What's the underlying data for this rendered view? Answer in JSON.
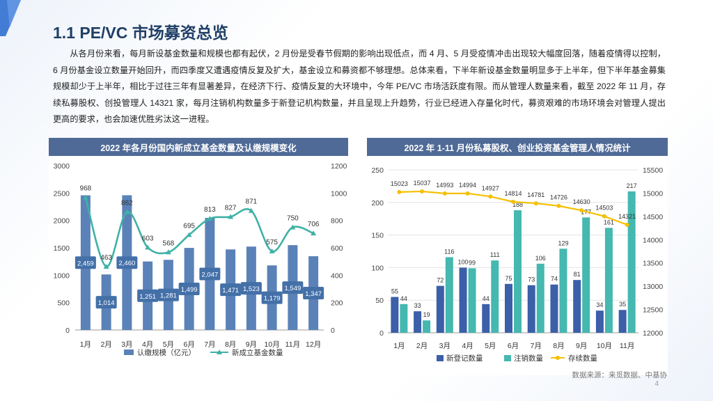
{
  "page": {
    "title": "1.1 PE/VC 市场募资总览",
    "paragraph": "从各月份来看，每月新设基金数量和规模也都有起伏，2 月份是受春节假期的影响出现低点，而 4 月、5 月受疫情冲击出现较大幅度回落，随着疫情得以控制，6 月份基金设立数量开始回升，而四季度又遭遇疫情反复及扩大，基金设立和募资都不够理想。总体来看，下半年新设基金数量明显多于上半年，但下半年基金募集规模却少于上半年，相比于过往三年有显著差异，在经济下行、疫情反复的大环境中，今年 PE/VC 市场活跃度有限。而从管理人数量来看，截至 2022 年 11 月，存续私募股权、创投管理人 14321 家，每月注销机构数量多于新登记机构数量，并且呈现上升趋势，行业已经进入存量化时代，募资艰难的市场环境会对管理人提出更高的要求，也会加速优胜劣汰这一进程。",
    "source": "数据来源：来觅数据、中基协",
    "page_number": "4",
    "accent_color": "#4f6a96"
  },
  "chart_data": [
    {
      "type": "bar",
      "title": "2022 年各月份国内新成立基金数量及认缴规模变化",
      "categories": [
        "1月",
        "2月",
        "3月",
        "4月",
        "5月",
        "6月",
        "7月",
        "8月",
        "9月",
        "10月",
        "11月",
        "12月"
      ],
      "series": [
        {
          "name": "认缴规模（亿元）",
          "type": "bar",
          "axis": "left",
          "color": "#5b82b8",
          "values": [
            2459,
            1014,
            2460,
            1251,
            1281,
            1499,
            2047,
            1471,
            1523,
            1179,
            1549,
            1347
          ],
          "labels": [
            "2,459",
            "1,014",
            "2,460",
            "1,251",
            "1,281",
            "1,499",
            "2,047",
            "1,471",
            "1,523",
            "1,179",
            "1,549",
            "1,347"
          ]
        },
        {
          "name": "新成立基金数量",
          "type": "line",
          "axis": "right",
          "color": "#3fb1a6",
          "values": [
            968,
            463,
            862,
            603,
            568,
            695,
            813,
            827,
            871,
            575,
            750,
            706
          ]
        }
      ],
      "ylim_left": [
        0,
        3000
      ],
      "yticks_left": [
        0,
        500,
        1000,
        1500,
        2000,
        2500,
        3000
      ],
      "ylim_right": [
        0,
        1200
      ],
      "yticks_right": [
        0,
        200,
        400,
        600,
        800,
        1000,
        1200
      ],
      "legend": "bottom"
    },
    {
      "type": "bar",
      "title": "2022 年 1-11 月份私募股权、创业投资基金管理人情况统计",
      "categories": [
        "1月",
        "2月",
        "3月",
        "4月",
        "5月",
        "6月",
        "7月",
        "8月",
        "9月",
        "10月",
        "11月"
      ],
      "series": [
        {
          "name": "新登记数量",
          "type": "bar",
          "axis": "left",
          "color": "#3b5fa8",
          "values": [
            55,
            33,
            72,
            100,
            44,
            75,
            73,
            74,
            81,
            34,
            35
          ]
        },
        {
          "name": "注销数量",
          "type": "bar",
          "axis": "left",
          "color": "#45b8b0",
          "values": [
            44,
            19,
            116,
            99,
            111,
            188,
            106,
            129,
            177,
            161,
            217
          ]
        },
        {
          "name": "存续数量",
          "type": "line",
          "axis": "right",
          "color": "#f5c000",
          "values": [
            15023,
            15037,
            14993,
            14994,
            14927,
            14814,
            14781,
            14726,
            14630,
            14503,
            14321
          ]
        }
      ],
      "ylim_left": [
        0,
        250
      ],
      "yticks_left": [
        0,
        50,
        100,
        150,
        200,
        250
      ],
      "ylim_right": [
        12000,
        15500
      ],
      "yticks_right": [
        12000,
        12500,
        13000,
        13500,
        14000,
        14500,
        15000,
        15500
      ],
      "legend": "bottom"
    }
  ]
}
